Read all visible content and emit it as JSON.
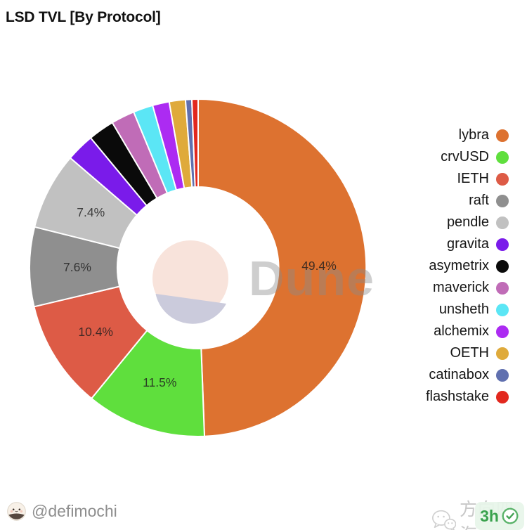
{
  "header": {
    "title": "LSD TVL [By Protocol]"
  },
  "chart_data": {
    "type": "pie",
    "donut": true,
    "title": "LSD TVL [By Protocol]",
    "unit": "%",
    "start_angle_deg": 0,
    "direction": "clockwise",
    "legend_position": "right",
    "label_threshold_pct": 5,
    "slices": [
      {
        "name": "lybra",
        "value": 49.4,
        "color": "#dd7230",
        "label": "49.4%"
      },
      {
        "name": "crvUSD",
        "value": 11.5,
        "color": "#5fdf3d",
        "label": "11.5%"
      },
      {
        "name": "IETH",
        "value": 10.4,
        "color": "#dd5b46",
        "label": "10.4%"
      },
      {
        "name": "raft",
        "value": 7.6,
        "color": "#8f8f8f",
        "label": "7.6%"
      },
      {
        "name": "pendle",
        "value": 7.4,
        "color": "#c1c1c1",
        "label": "7.4%"
      },
      {
        "name": "gravita",
        "value": 2.7,
        "color": "#7a1bea",
        "label": ""
      },
      {
        "name": "asymetrix",
        "value": 2.5,
        "color": "#0a0a0a",
        "label": ""
      },
      {
        "name": "maverick",
        "value": 2.25,
        "color": "#c06cb7",
        "label": ""
      },
      {
        "name": "unsheth",
        "value": 1.9,
        "color": "#5be6f5",
        "label": ""
      },
      {
        "name": "alchemix",
        "value": 1.6,
        "color": "#ac2bf2",
        "label": ""
      },
      {
        "name": "OETH",
        "value": 1.55,
        "color": "#dfaa3b",
        "label": ""
      },
      {
        "name": "catinabox",
        "value": 0.6,
        "color": "#6070af",
        "label": ""
      },
      {
        "name": "flashstake",
        "value": 0.6,
        "color": "#e2281e",
        "label": ""
      }
    ]
  },
  "watermark": {
    "text": "Dune",
    "logo_top_color": "#f8e3db",
    "logo_bottom_color": "#cbcbdc"
  },
  "footer": {
    "author": "@defimochi",
    "watermark_cn": "方向四海",
    "badge_text": "3h",
    "badge_color": "#3aa24e"
  }
}
